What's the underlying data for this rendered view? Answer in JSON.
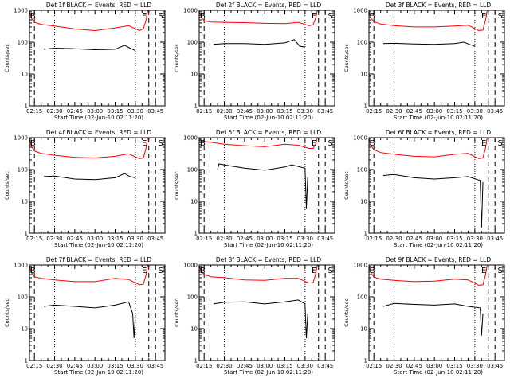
{
  "chart_data": [
    {
      "type": "line",
      "title": "Det 1f BLACK = Events, RED = LLD",
      "xlabel": "Start Time (02-Jun-10 02:11:20)",
      "ylabel": "Counts/sec",
      "y_scale": "log",
      "ylim": [
        1,
        1000
      ],
      "yticks": [
        1,
        10,
        100,
        1000
      ],
      "xlim": [
        "02:11:20",
        "03:52:00"
      ],
      "xticks": [
        "02:15",
        "02:30",
        "02:45",
        "03:00",
        "03:15",
        "03:30",
        "03:45"
      ],
      "markers": {
        "dashed": [
          "02:15",
          "03:40",
          "03:45"
        ],
        "dotted": [
          "02:30",
          "03:30"
        ]
      },
      "letters": [
        "B",
        "E",
        "S"
      ],
      "series": [
        {
          "color": "#ff0000",
          "x": [
            "02:11:20",
            "02:12",
            "02:13",
            "02:15",
            "02:20",
            "02:30",
            "02:45",
            "03:00",
            "03:15",
            "03:25",
            "03:33",
            "03:36",
            "03:38",
            "03:39",
            "03:40"
          ],
          "y": [
            900,
            750,
            550,
            420,
            360,
            320,
            260,
            230,
            280,
            330,
            230,
            260,
            500,
            900,
            1000
          ]
        },
        {
          "color": "#000000",
          "x": [
            "02:22",
            "02:30",
            "02:45",
            "03:00",
            "03:15",
            "03:22",
            "03:26",
            "03:30"
          ],
          "y": [
            60,
            65,
            62,
            58,
            60,
            80,
            65,
            55
          ]
        }
      ]
    },
    {
      "type": "line",
      "title": "Det 2f BLACK = Events, RED = LLD",
      "xlabel": "Start Time (02-Jun-10 02:11:20)",
      "ylabel": "Counts/sec",
      "y_scale": "log",
      "ylim": [
        1,
        1000
      ],
      "yticks": [
        1,
        10,
        100,
        1000
      ],
      "xlim": [
        "02:11:20",
        "03:52:00"
      ],
      "xticks": [
        "02:15",
        "02:30",
        "02:45",
        "03:00",
        "03:15",
        "03:30",
        "03:45"
      ],
      "markers": {
        "dashed": [
          "02:15",
          "03:40",
          "03:45"
        ],
        "dotted": [
          "02:30",
          "03:30"
        ]
      },
      "letters": [
        "B",
        "E",
        "S"
      ],
      "series": [
        {
          "color": "#ff0000",
          "x": [
            "02:11:20",
            "02:12",
            "02:13",
            "02:15",
            "02:20",
            "02:30",
            "02:45",
            "03:00",
            "03:15",
            "03:25",
            "03:33",
            "03:36",
            "03:38",
            "03:39",
            "03:40"
          ],
          "y": [
            900,
            760,
            600,
            470,
            430,
            420,
            410,
            390,
            380,
            420,
            330,
            350,
            600,
            950,
            1000
          ]
        },
        {
          "color": "#000000",
          "x": [
            "02:22",
            "02:30",
            "02:45",
            "03:00",
            "03:15",
            "03:22",
            "03:26",
            "03:30"
          ],
          "y": [
            85,
            90,
            90,
            85,
            95,
            120,
            75,
            70
          ]
        }
      ]
    },
    {
      "type": "line",
      "title": "Det 3f BLACK = Events, RED = LLD",
      "xlabel": "Start Time (02-Jun-10 02:11:20)",
      "ylabel": "Counts/sec",
      "y_scale": "log",
      "ylim": [
        1,
        1000
      ],
      "yticks": [
        1,
        10,
        100,
        1000
      ],
      "xlim": [
        "02:11:20",
        "03:52:00"
      ],
      "xticks": [
        "02:15",
        "02:30",
        "02:45",
        "03:00",
        "03:15",
        "03:30",
        "03:45"
      ],
      "markers": {
        "dashed": [
          "02:15",
          "03:40",
          "03:45"
        ],
        "dotted": [
          "02:30",
          "03:30"
        ]
      },
      "letters": [
        "B",
        "E",
        "S"
      ],
      "series": [
        {
          "color": "#ff0000",
          "x": [
            "02:11:20",
            "02:12",
            "02:13",
            "02:15",
            "02:20",
            "02:30",
            "02:45",
            "03:00",
            "03:15",
            "03:25",
            "03:33",
            "03:36",
            "03:38",
            "03:39",
            "03:40"
          ],
          "y": [
            900,
            750,
            560,
            440,
            370,
            330,
            300,
            300,
            320,
            340,
            230,
            240,
            500,
            900,
            1000
          ]
        },
        {
          "color": "#000000",
          "x": [
            "02:22",
            "02:30",
            "02:45",
            "03:00",
            "03:15",
            "03:22",
            "03:26",
            "03:30"
          ],
          "y": [
            90,
            92,
            88,
            85,
            90,
            100,
            85,
            75
          ]
        }
      ]
    },
    {
      "type": "line",
      "title": "Det 4f BLACK = Events, RED = LLD",
      "xlabel": "Start Time (02-Jun-10 02:11:20)",
      "ylabel": "Counts/sec",
      "y_scale": "log",
      "ylim": [
        1,
        1000
      ],
      "yticks": [
        1,
        10,
        100,
        1000
      ],
      "xlim": [
        "02:11:20",
        "03:52:00"
      ],
      "xticks": [
        "02:15",
        "02:30",
        "02:45",
        "03:00",
        "03:15",
        "03:30",
        "03:45"
      ],
      "markers": {
        "dashed": [
          "02:15",
          "03:40",
          "03:45"
        ],
        "dotted": [
          "02:30",
          "03:30"
        ]
      },
      "letters": [
        "B",
        "E",
        "S"
      ],
      "series": [
        {
          "color": "#ff0000",
          "x": [
            "02:11:20",
            "02:12",
            "02:13",
            "02:15",
            "02:20",
            "02:30",
            "02:45",
            "03:00",
            "03:15",
            "03:25",
            "03:33",
            "03:36",
            "03:38",
            "03:39",
            "03:40"
          ],
          "y": [
            900,
            750,
            520,
            380,
            320,
            280,
            240,
            230,
            260,
            310,
            220,
            230,
            480,
            900,
            1000
          ]
        },
        {
          "color": "#000000",
          "x": [
            "02:22",
            "02:30",
            "02:45",
            "03:00",
            "03:15",
            "03:22",
            "03:26",
            "03:30"
          ],
          "y": [
            60,
            62,
            50,
            48,
            55,
            75,
            60,
            55
          ]
        }
      ]
    },
    {
      "type": "line",
      "title": "Det 5f BLACK = Events, RED = LLD",
      "xlabel": "Start Time (02-Jun-10 02:11:20)",
      "ylabel": "Counts/sec",
      "y_scale": "log",
      "ylim": [
        1,
        1000
      ],
      "yticks": [
        1,
        10,
        100,
        1000
      ],
      "xlim": [
        "02:11:20",
        "03:52:00"
      ],
      "xticks": [
        "02:15",
        "02:30",
        "02:45",
        "03:00",
        "03:15",
        "03:30",
        "03:45"
      ],
      "markers": {
        "dashed": [
          "02:15",
          "03:40",
          "03:45"
        ],
        "dotted": [
          "02:30",
          "03:30"
        ]
      },
      "letters": [
        "B",
        "E",
        "S"
      ],
      "series": [
        {
          "color": "#ff0000",
          "x": [
            "02:11:20",
            "02:12",
            "02:13",
            "02:15",
            "02:20",
            "02:30",
            "02:45",
            "03:00",
            "03:15",
            "03:25",
            "03:33",
            "03:36",
            "03:38",
            "03:39",
            "03:40"
          ],
          "y": [
            950,
            880,
            800,
            760,
            720,
            620,
            560,
            520,
            620,
            580,
            460,
            460,
            650,
            950,
            1000
          ]
        },
        {
          "color": "#000000",
          "x": [
            "02:25",
            "02:26",
            "02:30",
            "02:45",
            "03:00",
            "03:15",
            "03:20",
            "03:30",
            "03:31",
            "03:32"
          ],
          "y": [
            100,
            150,
            140,
            110,
            95,
            120,
            140,
            110,
            6,
            60
          ]
        }
      ]
    },
    {
      "type": "line",
      "title": "Det 6f BLACK = Events, RED = LLD",
      "xlabel": "Start Time (02-Jun-10 02:11:20)",
      "ylabel": "Counts/sec",
      "y_scale": "log",
      "ylim": [
        1,
        1000
      ],
      "yticks": [
        1,
        10,
        100,
        1000
      ],
      "xlim": [
        "02:11:20",
        "03:52:00"
      ],
      "xticks": [
        "02:15",
        "02:30",
        "02:45",
        "03:00",
        "03:15",
        "03:30",
        "03:45"
      ],
      "markers": {
        "dashed": [
          "02:15",
          "03:40",
          "03:45"
        ],
        "dotted": [
          "02:30",
          "03:30"
        ]
      },
      "letters": [
        "B",
        "E",
        "S"
      ],
      "series": [
        {
          "color": "#ff0000",
          "x": [
            "02:11:20",
            "02:12",
            "02:13",
            "02:15",
            "02:20",
            "02:30",
            "02:45",
            "03:00",
            "03:15",
            "03:25",
            "03:33",
            "03:36",
            "03:38",
            "03:39",
            "03:40"
          ],
          "y": [
            900,
            760,
            560,
            420,
            340,
            300,
            260,
            250,
            300,
            320,
            220,
            230,
            480,
            900,
            1000
          ]
        },
        {
          "color": "#000000",
          "x": [
            "02:22",
            "02:30",
            "02:45",
            "03:00",
            "03:15",
            "03:25",
            "03:34",
            "03:35",
            "03:36"
          ],
          "y": [
            65,
            70,
            55,
            50,
            55,
            60,
            45,
            1.5,
            40
          ]
        }
      ]
    },
    {
      "type": "line",
      "title": "Det 7f BLACK = Events, RED = LLD",
      "xlabel": "Start Time (02-Jun-10 02:11:20)",
      "ylabel": "Counts/sec",
      "y_scale": "log",
      "ylim": [
        1,
        1000
      ],
      "yticks": [
        1,
        10,
        100,
        1000
      ],
      "xlim": [
        "02:11:20",
        "03:52:00"
      ],
      "xticks": [
        "02:15",
        "02:30",
        "02:45",
        "03:00",
        "03:15",
        "03:30",
        "03:45"
      ],
      "markers": {
        "dashed": [
          "02:15",
          "03:40",
          "03:45"
        ],
        "dotted": [
          "02:30",
          "03:30"
        ]
      },
      "letters": [
        "B",
        "E",
        "S"
      ],
      "series": [
        {
          "color": "#ff0000",
          "x": [
            "02:11:20",
            "02:12",
            "02:13",
            "02:15",
            "02:20",
            "02:30",
            "02:45",
            "03:00",
            "03:15",
            "03:25",
            "03:33",
            "03:36",
            "03:38",
            "03:39",
            "03:40"
          ],
          "y": [
            900,
            760,
            560,
            430,
            380,
            340,
            300,
            300,
            380,
            350,
            240,
            250,
            500,
            900,
            1000
          ]
        },
        {
          "color": "#000000",
          "x": [
            "02:22",
            "02:30",
            "02:45",
            "03:00",
            "03:15",
            "03:25",
            "03:28",
            "03:29",
            "03:30"
          ],
          "y": [
            50,
            55,
            50,
            45,
            55,
            70,
            30,
            5,
            25
          ]
        }
      ]
    },
    {
      "type": "line",
      "title": "Det 8f BLACK = Events, RED = LLD",
      "xlabel": "Start Time (02-Jun-10 02:11:20)",
      "ylabel": "Counts/sec",
      "y_scale": "log",
      "ylim": [
        1,
        1000
      ],
      "yticks": [
        1,
        10,
        100,
        1000
      ],
      "xlim": [
        "02:11:20",
        "03:52:00"
      ],
      "xticks": [
        "02:15",
        "02:30",
        "02:45",
        "03:00",
        "03:15",
        "03:30",
        "03:45"
      ],
      "markers": {
        "dashed": [
          "02:15",
          "03:40",
          "03:45"
        ],
        "dotted": [
          "02:30",
          "03:30"
        ]
      },
      "letters": [
        "B",
        "E",
        "S"
      ],
      "series": [
        {
          "color": "#ff0000",
          "x": [
            "02:11:20",
            "02:12",
            "02:13",
            "02:15",
            "02:20",
            "02:30",
            "02:45",
            "03:00",
            "03:15",
            "03:25",
            "03:33",
            "03:36",
            "03:38",
            "03:39",
            "03:40"
          ],
          "y": [
            900,
            780,
            620,
            500,
            430,
            400,
            340,
            330,
            380,
            380,
            270,
            280,
            550,
            950,
            1000
          ]
        },
        {
          "color": "#000000",
          "x": [
            "02:22",
            "02:30",
            "02:45",
            "03:00",
            "03:15",
            "03:25",
            "03:30",
            "03:31",
            "03:32"
          ],
          "y": [
            60,
            68,
            70,
            60,
            70,
            80,
            60,
            5,
            30
          ]
        }
      ]
    },
    {
      "type": "line",
      "title": "Det 9f BLACK = Events, RED = LLD",
      "xlabel": "Start Time (02-Jun-10 02:11:20)",
      "ylabel": "Counts/sec",
      "y_scale": "log",
      "ylim": [
        1,
        1000
      ],
      "yticks": [
        1,
        10,
        100,
        1000
      ],
      "xlim": [
        "02:11:20",
        "03:52:00"
      ],
      "xticks": [
        "02:15",
        "02:30",
        "02:45",
        "03:00",
        "03:15",
        "03:30",
        "03:45"
      ],
      "markers": {
        "dashed": [
          "02:15",
          "03:40",
          "03:45"
        ],
        "dotted": [
          "02:30",
          "03:30"
        ]
      },
      "letters": [
        "B",
        "E",
        "S"
      ],
      "series": [
        {
          "color": "#ff0000",
          "x": [
            "02:11:20",
            "02:12",
            "02:13",
            "02:15",
            "02:20",
            "02:30",
            "02:45",
            "03:00",
            "03:15",
            "03:25",
            "03:33",
            "03:36",
            "03:38",
            "03:39",
            "03:40"
          ],
          "y": [
            900,
            760,
            560,
            420,
            360,
            330,
            300,
            310,
            360,
            340,
            230,
            240,
            500,
            900,
            1000
          ]
        },
        {
          "color": "#000000",
          "x": [
            "02:22",
            "02:30",
            "02:45",
            "03:00",
            "03:15",
            "03:25",
            "03:34",
            "03:35",
            "03:36"
          ],
          "y": [
            50,
            62,
            58,
            55,
            60,
            50,
            45,
            6,
            30
          ]
        }
      ]
    }
  ]
}
